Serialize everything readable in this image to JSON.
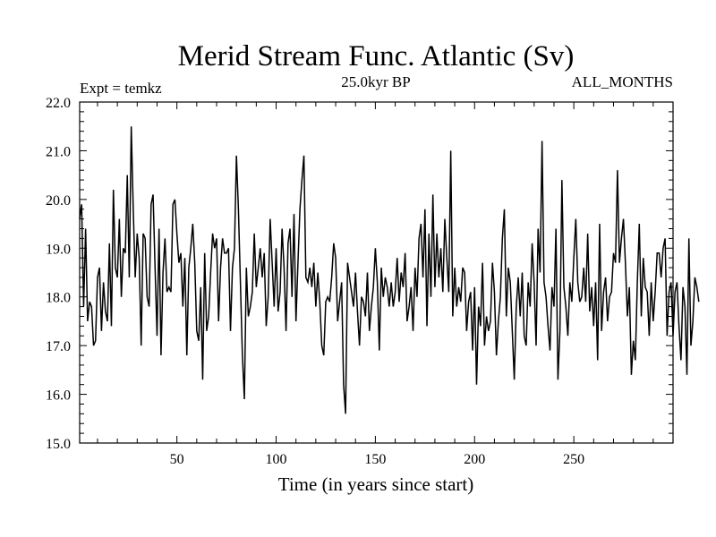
{
  "chart_data": {
    "type": "line",
    "title": "Merid Stream Func. Atlantic (Sv)",
    "subtitle_left": "Expt = temkz",
    "subtitle_center": "25.0kyr BP",
    "subtitle_right": "ALL_MONTHS",
    "xlabel": "Time (in years since start)",
    "ylabel": "",
    "xlim": [
      1,
      300
    ],
    "ylim": [
      15.0,
      22.0
    ],
    "xticks": [
      50,
      100,
      150,
      200,
      250
    ],
    "yticks": [
      15.0,
      16.0,
      17.0,
      18.0,
      19.0,
      20.0,
      21.0,
      22.0
    ],
    "grid": false,
    "series": [
      {
        "name": "Merid Stream Func. Atlantic",
        "color": "#000000",
        "x_start": 1,
        "x_step": 1,
        "values": [
          19.6,
          19.9,
          17.8,
          19.4,
          17.5,
          17.9,
          17.8,
          17.0,
          17.1,
          18.4,
          18.6,
          17.3,
          18.3,
          17.7,
          17.5,
          19.1,
          17.4,
          20.2,
          18.6,
          18.4,
          19.6,
          18.0,
          19.0,
          18.9,
          20.5,
          18.4,
          21.5,
          19.8,
          18.4,
          19.3,
          18.8,
          17.0,
          19.3,
          19.2,
          18.0,
          17.8,
          19.9,
          20.1,
          18.6,
          17.2,
          19.4,
          16.8,
          18.5,
          19.2,
          18.1,
          18.2,
          18.1,
          19.9,
          20.0,
          19.3,
          18.7,
          18.9,
          17.8,
          18.8,
          16.8,
          18.6,
          19.0,
          19.5,
          18.7,
          17.3,
          17.1,
          18.2,
          16.3,
          18.9,
          17.3,
          17.6,
          18.5,
          19.3,
          19.0,
          19.2,
          17.5,
          18.6,
          19.2,
          18.9,
          18.9,
          19.0,
          17.3,
          18.6,
          19.0,
          20.9,
          19.8,
          18.3,
          16.8,
          15.9,
          18.6,
          17.6,
          17.8,
          18.1,
          19.3,
          18.2,
          18.6,
          19.0,
          18.4,
          18.9,
          17.4,
          18.0,
          19.6,
          18.7,
          17.8,
          19.0,
          17.7,
          18.1,
          19.4,
          18.6,
          17.3,
          19.1,
          19.4,
          18.0,
          19.7,
          17.5,
          18.7,
          19.8,
          20.4,
          20.9,
          18.4,
          18.3,
          18.6,
          18.2,
          18.7,
          17.8,
          18.5,
          17.9,
          17.0,
          16.8,
          17.9,
          18.0,
          17.9,
          18.4,
          19.1,
          18.8,
          17.5,
          17.9,
          18.3,
          16.2,
          15.6,
          18.7,
          18.4,
          18.1,
          17.8,
          18.5,
          17.7,
          17.0,
          18.0,
          17.9,
          17.6,
          18.5,
          17.3,
          17.8,
          18.2,
          19.0,
          18.3,
          16.9,
          18.6,
          18.0,
          18.4,
          18.2,
          17.8,
          18.3,
          17.8,
          18.1,
          18.8,
          17.9,
          18.5,
          18.2,
          18.9,
          17.5,
          17.8,
          18.2,
          17.3,
          18.6,
          18.0,
          19.2,
          19.5,
          18.4,
          19.8,
          17.4,
          19.3,
          18.0,
          20.1,
          18.2,
          19.3,
          18.4,
          19.0,
          18.1,
          19.6,
          18.8,
          18.1,
          21.0,
          17.6,
          18.6,
          17.8,
          18.2,
          17.9,
          18.6,
          18.5,
          17.3,
          17.9,
          18.1,
          16.9,
          18.2,
          16.2,
          17.8,
          17.4,
          18.7,
          17.0,
          17.6,
          17.3,
          17.5,
          18.7,
          18.1,
          16.8,
          17.5,
          18.0,
          19.2,
          19.8,
          17.6,
          18.6,
          18.3,
          17.3,
          16.3,
          17.8,
          18.4,
          17.6,
          18.5,
          17.2,
          17.0,
          18.3,
          17.8,
          19.1,
          18.3,
          17.0,
          19.4,
          18.5,
          21.2,
          18.3,
          18.0,
          17.4,
          16.9,
          18.2,
          17.8,
          19.4,
          16.3,
          17.3,
          20.4,
          18.2,
          17.8,
          17.2,
          18.3,
          17.9,
          18.8,
          19.6,
          18.3,
          17.9,
          18.0,
          18.6,
          17.9,
          19.3,
          17.7,
          18.2,
          17.4,
          18.3,
          16.7,
          19.5,
          17.3,
          18.1,
          18.4,
          17.5,
          18.0,
          18.1,
          18.9,
          18.7,
          20.6,
          18.7,
          19.2,
          19.6,
          18.7,
          17.6,
          18.2,
          16.4,
          17.1,
          16.7,
          18.3,
          19.5,
          17.6,
          18.8,
          18.2,
          18.1,
          17.2,
          18.3,
          17.5,
          18.1,
          18.9,
          18.9,
          18.4,
          19.0,
          19.2,
          17.2,
          18.1,
          18.3,
          17.2,
          18.1,
          18.3,
          17.4,
          16.7,
          18.2,
          17.8,
          16.4,
          19.2,
          17.0,
          17.5,
          18.4,
          18.2,
          17.9
        ]
      }
    ]
  }
}
